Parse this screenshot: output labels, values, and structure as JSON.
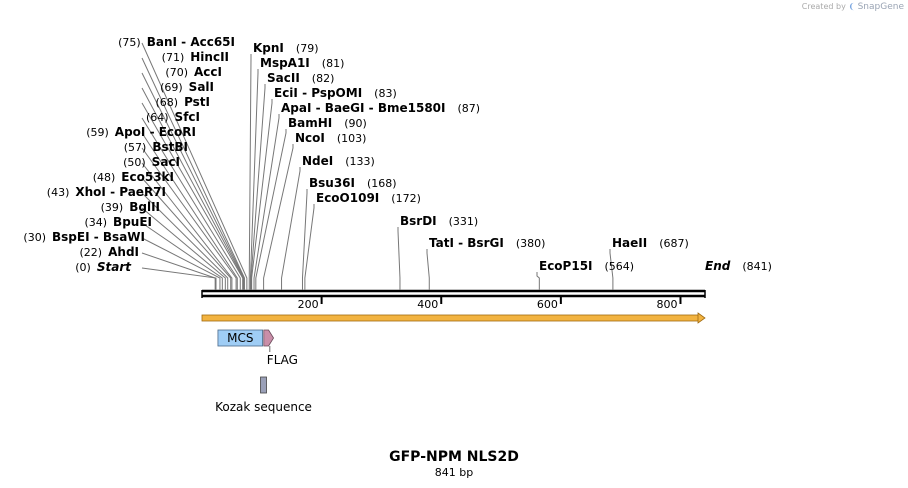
{
  "credit": {
    "prefix": "Created by",
    "brand": "SnapGene"
  },
  "plasmid": {
    "name": "GFP-NPM NLS2D",
    "length_label": "841 bp",
    "length_bp": 841
  },
  "sites": [
    {
      "names": [
        "BanI",
        "Acc65I"
      ],
      "pos": 75,
      "pos_label": "(75)",
      "side": "left"
    },
    {
      "names": [
        "HincII"
      ],
      "pos": 71,
      "pos_label": "(71)",
      "side": "left"
    },
    {
      "names": [
        "AccI"
      ],
      "pos": 70,
      "pos_label": "(70)",
      "side": "left"
    },
    {
      "names": [
        "SalI"
      ],
      "pos": 69,
      "pos_label": "(69)",
      "side": "left"
    },
    {
      "names": [
        "PstI"
      ],
      "pos": 68,
      "pos_label": "(68)",
      "side": "left"
    },
    {
      "names": [
        "SfcI"
      ],
      "pos": 64,
      "pos_label": "(64)",
      "side": "left"
    },
    {
      "names": [
        "ApoI",
        "EcoRI"
      ],
      "pos": 59,
      "pos_label": "(59)",
      "side": "left"
    },
    {
      "names": [
        "BstBI"
      ],
      "pos": 57,
      "pos_label": "(57)",
      "side": "left"
    },
    {
      "names": [
        "SacI"
      ],
      "pos": 50,
      "pos_label": "(50)",
      "side": "left"
    },
    {
      "names": [
        "Eco53kI"
      ],
      "pos": 48,
      "pos_label": "(48)",
      "side": "left"
    },
    {
      "names": [
        "XhoI",
        "PaeR7I"
      ],
      "pos": 43,
      "pos_label": "(43)",
      "side": "left"
    },
    {
      "names": [
        "BglII"
      ],
      "pos": 39,
      "pos_label": "(39)",
      "side": "left"
    },
    {
      "names": [
        "BpuEI"
      ],
      "pos": 34,
      "pos_label": "(34)",
      "side": "left"
    },
    {
      "names": [
        "BspEI",
        "BsaWI"
      ],
      "pos": 30,
      "pos_label": "(30)",
      "side": "left"
    },
    {
      "names": [
        "AhdI"
      ],
      "pos": 22,
      "pos_label": "(22)",
      "side": "left"
    },
    {
      "names": [
        "Start"
      ],
      "pos": 0,
      "pos_label": "(0)",
      "side": "left",
      "italic": true
    },
    {
      "names": [
        "KpnI"
      ],
      "pos": 79,
      "pos_label": "(79)",
      "side": "right"
    },
    {
      "names": [
        "MspA1I"
      ],
      "pos": 81,
      "pos_label": "(81)",
      "side": "right"
    },
    {
      "names": [
        "SacII"
      ],
      "pos": 82,
      "pos_label": "(82)",
      "side": "right"
    },
    {
      "names": [
        "EciI",
        "PspOMI"
      ],
      "pos": 83,
      "pos_label": "(83)",
      "side": "right"
    },
    {
      "names": [
        "ApaI",
        "BaeGI",
        "Bme1580I"
      ],
      "pos": 87,
      "pos_label": "(87)",
      "side": "right"
    },
    {
      "names": [
        "BamHI"
      ],
      "pos": 90,
      "pos_label": "(90)",
      "side": "right"
    },
    {
      "names": [
        "NcoI"
      ],
      "pos": 103,
      "pos_label": "(103)",
      "side": "right"
    },
    {
      "names": [
        "NdeI"
      ],
      "pos": 133,
      "pos_label": "(133)",
      "side": "right"
    },
    {
      "names": [
        "Bsu36I"
      ],
      "pos": 168,
      "pos_label": "(168)",
      "side": "right"
    },
    {
      "names": [
        "EcoO109I"
      ],
      "pos": 172,
      "pos_label": "(172)",
      "side": "right"
    },
    {
      "names": [
        "BsrDI"
      ],
      "pos": 331,
      "pos_label": "(331)",
      "side": "right"
    },
    {
      "names": [
        "TatI",
        "BsrGI"
      ],
      "pos": 380,
      "pos_label": "(380)",
      "side": "right"
    },
    {
      "names": [
        "HaeII"
      ],
      "pos": 687,
      "pos_label": "(687)",
      "side": "right"
    },
    {
      "names": [
        "EcoP15I"
      ],
      "pos": 564,
      "pos_label": "(564)",
      "side": "right"
    },
    {
      "names": [
        "End"
      ],
      "pos": 841,
      "pos_label": "(841)",
      "side": "right",
      "italic": true
    }
  ],
  "ruler": {
    "ticks": [
      200,
      400,
      600,
      800
    ],
    "tick_labels": [
      "200",
      "400",
      "600",
      "800"
    ]
  },
  "features": [
    {
      "label": "MCS",
      "start": 30,
      "end": 98,
      "type": "box",
      "color": "#9fcdf5",
      "label_inside": true
    },
    {
      "label": "FLAG",
      "start": 105,
      "end": 128,
      "type": "arrow",
      "color": "#c98ea8"
    },
    {
      "label": "Kozak sequence",
      "start": 97,
      "end": 107,
      "type": "box",
      "color": "#9aa0b8"
    }
  ],
  "orf": {
    "start": 1,
    "end": 841,
    "color": "#f2b340"
  }
}
